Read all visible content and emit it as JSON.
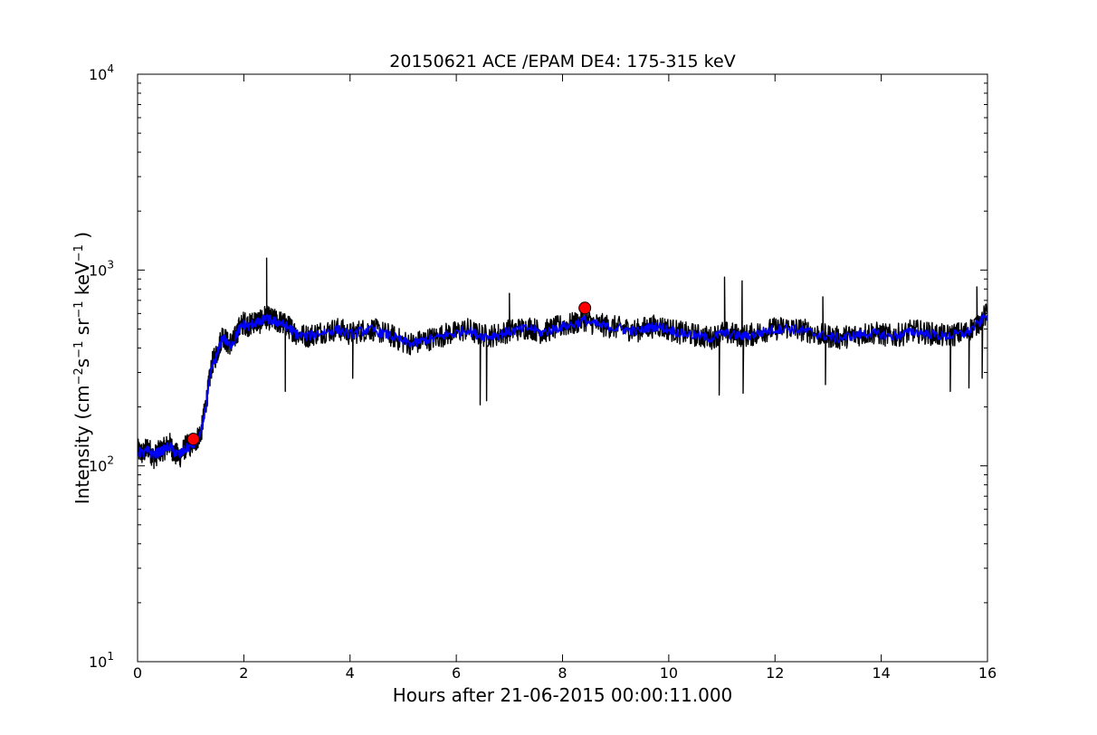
{
  "chart_data": {
    "type": "line",
    "title": "20150621 ACE /EPAM DE4: 175-315 keV",
    "xlabel": "Hours after 21-06-2015 00:00:11.000",
    "ylabel": {
      "prefix": "Intensity (cm",
      "sup1": "−2",
      "mid1": "s",
      "sup2": "−1",
      "mid2": " sr",
      "sup3": "−1",
      "mid3": " keV",
      "sup4": "−1",
      "suffix": " )"
    },
    "xlim": [
      0,
      16
    ],
    "ylim": [
      10,
      10000
    ],
    "yscale": "log",
    "grid": false,
    "x_ticks": [
      0,
      2,
      4,
      6,
      8,
      10,
      12,
      14,
      16
    ],
    "y_ticks": [
      {
        "value": 10,
        "base": "10",
        "exp": "1"
      },
      {
        "value": 100,
        "base": "10",
        "exp": "2"
      },
      {
        "value": 1000,
        "base": "10",
        "exp": "3"
      },
      {
        "value": 10000,
        "base": "10",
        "exp": "4"
      }
    ],
    "series": [
      {
        "color": "#000000",
        "style": "raw",
        "x": [
          0.0,
          0.1,
          0.2,
          0.3,
          0.4,
          0.5,
          0.6,
          0.7,
          0.8,
          0.9,
          1.0,
          1.1,
          1.2,
          1.3,
          1.4,
          1.5,
          1.6,
          1.7,
          1.8,
          1.9,
          2.0,
          2.1,
          2.2,
          2.3,
          2.4,
          2.5,
          2.6,
          2.7,
          2.8,
          2.9,
          3.0,
          3.2,
          3.4,
          3.6,
          3.8,
          4.0,
          4.2,
          4.4,
          4.6,
          4.8,
          5.0,
          5.2,
          5.4,
          5.6,
          5.8,
          6.0,
          6.2,
          6.4,
          6.6,
          6.8,
          7.0,
          7.2,
          7.4,
          7.6,
          7.8,
          8.0,
          8.2,
          8.4,
          8.6,
          8.8,
          9.0,
          9.2,
          9.4,
          9.6,
          9.8,
          10.0,
          10.2,
          10.4,
          10.6,
          10.8,
          11.0,
          11.2,
          11.4,
          11.6,
          11.8,
          12.0,
          12.2,
          12.4,
          12.6,
          12.8,
          13.0,
          13.2,
          13.4,
          13.6,
          13.8,
          14.0,
          14.2,
          14.4,
          14.6,
          14.8,
          15.0,
          15.2,
          15.4,
          15.6,
          15.8,
          16.0
        ],
        "y": [
          120,
          115,
          125,
          110,
          118,
          122,
          130,
          115,
          112,
          125,
          128,
          135,
          150,
          220,
          330,
          380,
          470,
          420,
          430,
          500,
          540,
          520,
          550,
          540,
          580,
          560,
          550,
          540,
          520,
          500,
          470,
          460,
          480,
          490,
          500,
          470,
          490,
          500,
          480,
          460,
          430,
          420,
          440,
          450,
          470,
          480,
          500,
          470,
          460,
          470,
          490,
          500,
          510,
          480,
          500,
          520,
          530,
          560,
          530,
          520,
          510,
          500,
          490,
          510,
          520,
          500,
          480,
          470,
          460,
          450,
          480,
          470,
          460,
          470,
          490,
          500,
          510,
          500,
          490,
          470,
          460,
          450,
          460,
          470,
          480,
          470,
          460,
          470,
          490,
          480,
          470,
          460,
          470,
          480,
          530,
          600
        ],
        "spikes": [
          {
            "x": 2.43,
            "y": 1150
          },
          {
            "x": 2.78,
            "y": 240
          },
          {
            "x": 4.05,
            "y": 280
          },
          {
            "x": 6.45,
            "y": 205
          },
          {
            "x": 6.57,
            "y": 215
          },
          {
            "x": 7.0,
            "y": 760
          },
          {
            "x": 10.95,
            "y": 230
          },
          {
            "x": 11.05,
            "y": 920
          },
          {
            "x": 11.38,
            "y": 880
          },
          {
            "x": 11.4,
            "y": 235
          },
          {
            "x": 12.9,
            "y": 730
          },
          {
            "x": 12.95,
            "y": 260
          },
          {
            "x": 15.3,
            "y": 240
          },
          {
            "x": 15.65,
            "y": 250
          },
          {
            "x": 15.8,
            "y": 820
          },
          {
            "x": 15.9,
            "y": 280
          }
        ]
      },
      {
        "color": "#0000ff",
        "style": "smoothed",
        "x": [
          0.0,
          0.1,
          0.2,
          0.3,
          0.4,
          0.5,
          0.6,
          0.7,
          0.8,
          0.9,
          1.0,
          1.1,
          1.2,
          1.3,
          1.4,
          1.5,
          1.6,
          1.7,
          1.8,
          1.9,
          2.0,
          2.1,
          2.2,
          2.3,
          2.4,
          2.5,
          2.6,
          2.7,
          2.8,
          2.9,
          3.0,
          3.2,
          3.4,
          3.6,
          3.8,
          4.0,
          4.2,
          4.4,
          4.6,
          4.8,
          5.0,
          5.2,
          5.4,
          5.6,
          5.8,
          6.0,
          6.2,
          6.4,
          6.6,
          6.8,
          7.0,
          7.2,
          7.4,
          7.6,
          7.8,
          8.0,
          8.2,
          8.4,
          8.6,
          8.8,
          9.0,
          9.2,
          9.4,
          9.6,
          9.8,
          10.0,
          10.2,
          10.4,
          10.6,
          10.8,
          11.0,
          11.2,
          11.4,
          11.6,
          11.8,
          12.0,
          12.2,
          12.4,
          12.6,
          12.8,
          13.0,
          13.2,
          13.4,
          13.6,
          13.8,
          14.0,
          14.2,
          14.4,
          14.6,
          14.8,
          15.0,
          15.2,
          15.4,
          15.6,
          15.8,
          16.0
        ],
        "y": [
          118,
          116,
          120,
          114,
          117,
          121,
          126,
          117,
          114,
          122,
          126,
          132,
          148,
          215,
          320,
          370,
          460,
          415,
          425,
          495,
          530,
          515,
          540,
          535,
          570,
          555,
          545,
          535,
          515,
          495,
          468,
          458,
          476,
          486,
          496,
          468,
          486,
          496,
          476,
          458,
          430,
          420,
          438,
          448,
          466,
          476,
          496,
          468,
          458,
          468,
          486,
          496,
          506,
          478,
          496,
          516,
          526,
          555,
          528,
          516,
          506,
          496,
          486,
          506,
          516,
          496,
          478,
          468,
          458,
          448,
          478,
          468,
          458,
          468,
          486,
          496,
          506,
          496,
          486,
          468,
          458,
          448,
          458,
          468,
          476,
          468,
          458,
          468,
          486,
          476,
          468,
          458,
          468,
          476,
          525,
          590
        ]
      }
    ],
    "markers": [
      {
        "x": 1.05,
        "y": 137,
        "color": "#ff0000"
      },
      {
        "x": 8.42,
        "y": 640,
        "color": "#ff0000"
      }
    ]
  }
}
